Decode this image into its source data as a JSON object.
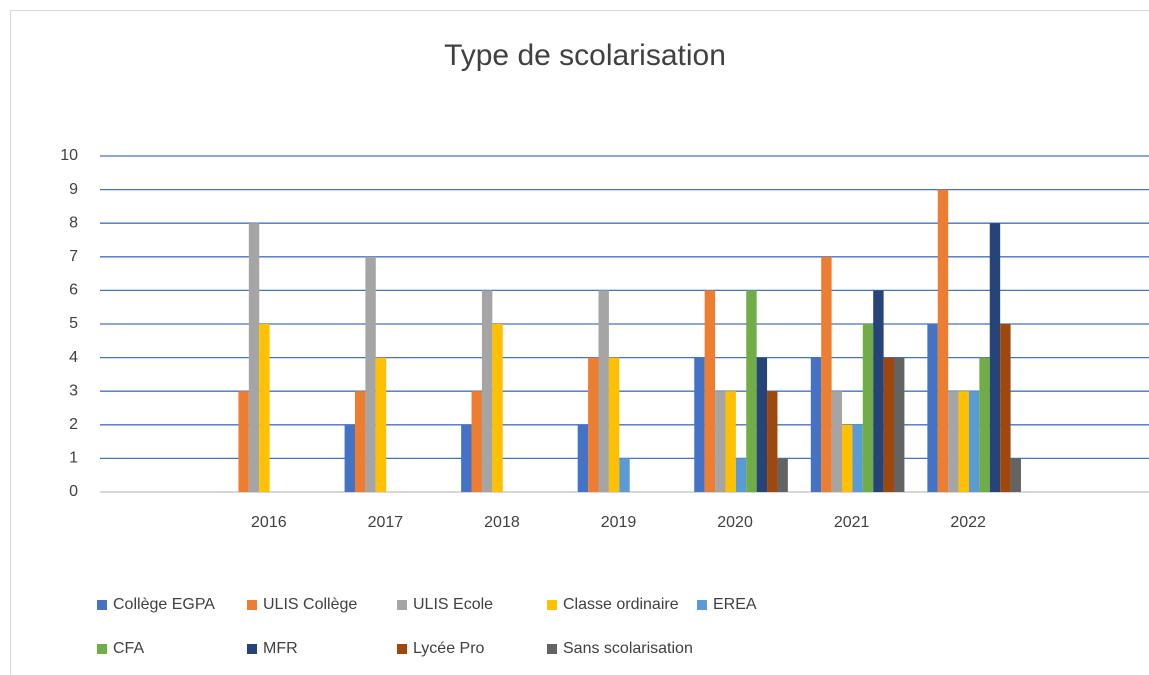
{
  "chart_data": {
    "type": "bar",
    "title": "Type de scolarisation",
    "categories": [
      null,
      "2016",
      "2017",
      "2018",
      "2019",
      "2020",
      "2021",
      "2022",
      null
    ],
    "series": [
      {
        "name": "Collège EGPA",
        "color": "#4472c4",
        "values": [
          null,
          0,
          2,
          2,
          2,
          4,
          4,
          5,
          null
        ]
      },
      {
        "name": "ULIS Collège",
        "color": "#ed7d31",
        "values": [
          null,
          3,
          3,
          3,
          4,
          6,
          7,
          9,
          null
        ]
      },
      {
        "name": "ULIS Ecole",
        "color": "#a5a5a5",
        "values": [
          null,
          8,
          7,
          6,
          6,
          3,
          3,
          3,
          null
        ]
      },
      {
        "name": "Classe ordinaire",
        "color": "#ffc000",
        "values": [
          null,
          5,
          4,
          5,
          4,
          3,
          2,
          3,
          null
        ]
      },
      {
        "name": "EREA",
        "color": "#5b9bd5",
        "values": [
          null,
          0,
          0,
          0,
          1,
          1,
          2,
          3,
          null
        ]
      },
      {
        "name": "CFA",
        "color": "#70ad47",
        "values": [
          null,
          0,
          0,
          0,
          0,
          6,
          5,
          4,
          null
        ]
      },
      {
        "name": "MFR",
        "color": "#264478",
        "values": [
          null,
          0,
          0,
          0,
          0,
          4,
          6,
          8,
          null
        ]
      },
      {
        "name": "Lycée Pro",
        "color": "#9e480e",
        "values": [
          null,
          0,
          0,
          0,
          0,
          3,
          4,
          5,
          null
        ]
      },
      {
        "name": "Sans scolarisation",
        "color": "#636363",
        "values": [
          null,
          0,
          0,
          0,
          0,
          1,
          4,
          1,
          null
        ]
      }
    ],
    "ylim": [
      0,
      10
    ],
    "yticks": [
      0,
      1,
      2,
      3,
      4,
      5,
      6,
      7,
      8,
      9,
      10
    ],
    "grid": true,
    "legend": "bottom"
  }
}
